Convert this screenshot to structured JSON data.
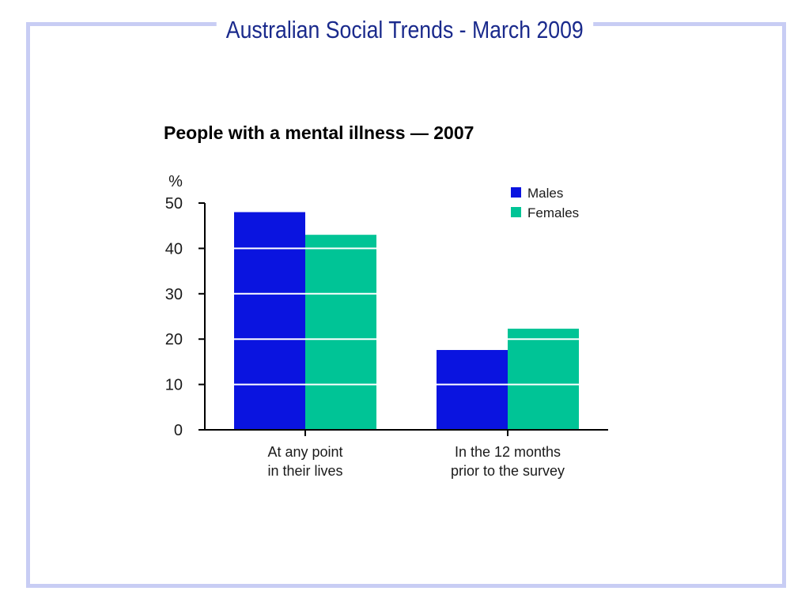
{
  "slide": {
    "title": "Australian Social Trends - March 2009"
  },
  "colors": {
    "frame": "#c8cdf4",
    "males": "#0a14e0",
    "females": "#00c496",
    "grid": "#ffffff",
    "axis": "#000000"
  },
  "chart_data": {
    "type": "bar",
    "title": "People with a mental illness — 2007",
    "ylabel": "%",
    "xlabel": "",
    "ylim": [
      0,
      50
    ],
    "yticks": [
      0,
      10,
      20,
      30,
      40,
      50
    ],
    "grid": true,
    "legend_position": "top-right",
    "categories": [
      "At any point\nin their lives",
      "In the 12 months\nprior to the survey"
    ],
    "series": [
      {
        "name": "Males",
        "values": [
          48,
          17.6
        ]
      },
      {
        "name": "Females",
        "values": [
          43,
          22.3
        ]
      }
    ]
  }
}
